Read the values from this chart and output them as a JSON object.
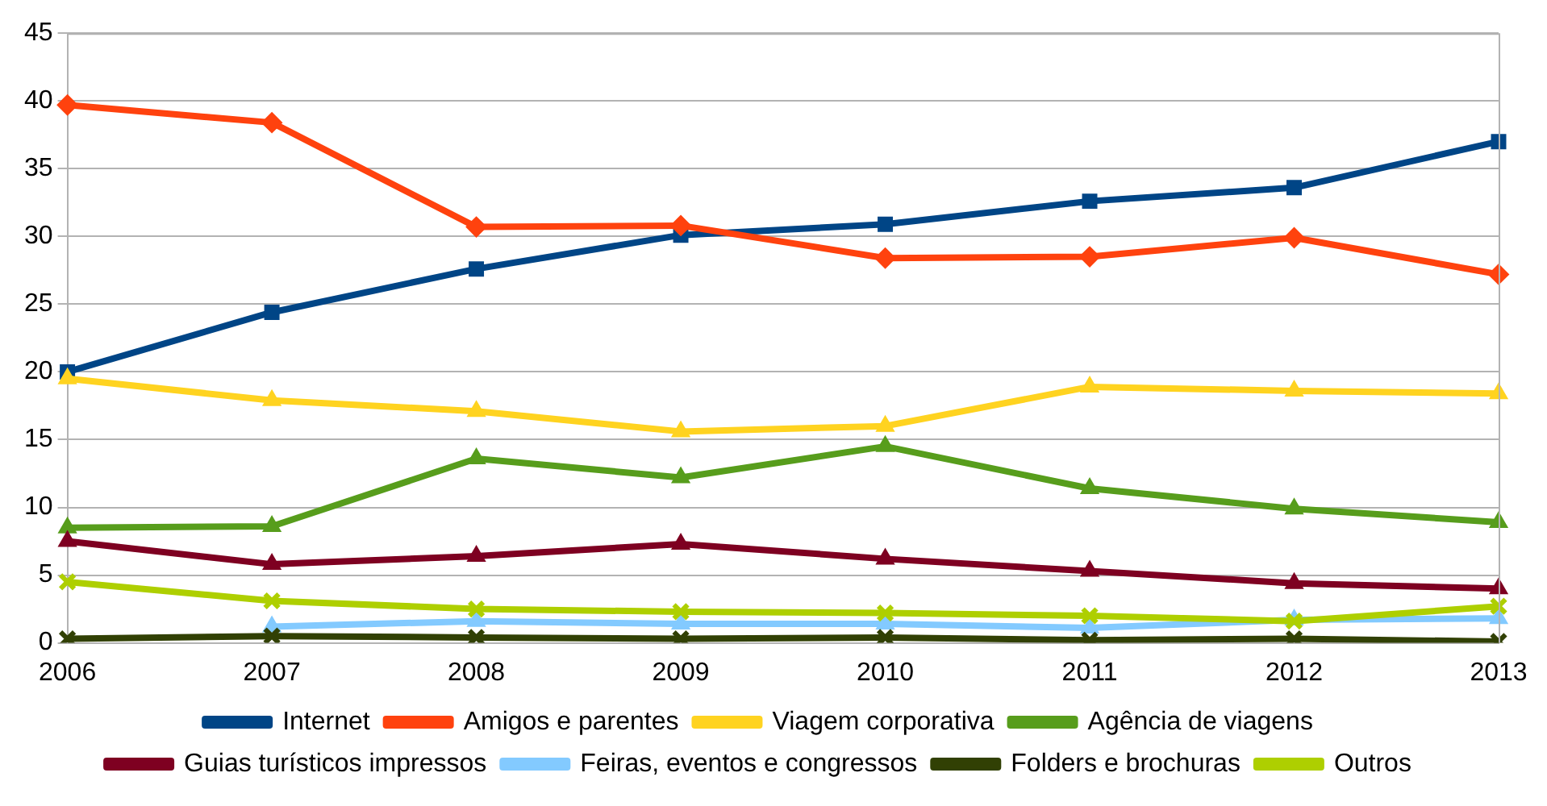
{
  "chart_data": {
    "type": "line",
    "categories": [
      "2006",
      "2007",
      "2008",
      "2009",
      "2010",
      "2011",
      "2012",
      "2013"
    ],
    "ylim": [
      0,
      45
    ],
    "yticks": [
      0,
      5,
      10,
      15,
      20,
      25,
      30,
      35,
      40,
      45
    ],
    "grid": "y",
    "legend": "bottom",
    "line_style": "solid",
    "series": [
      {
        "name": "Internet",
        "color": "#004586",
        "marker": "square",
        "values": [
          20,
          24.4,
          27.6,
          30.1,
          30.9,
          32.6,
          33.6,
          37.0
        ]
      },
      {
        "name": "Amigos e parentes",
        "color": "#ff420e",
        "marker": "diamond",
        "values": [
          39.7,
          38.4,
          30.7,
          30.8,
          28.4,
          28.5,
          29.9,
          27.2
        ]
      },
      {
        "name": "Viagem corporativa",
        "color": "#ffd320",
        "marker": "triangle",
        "values": [
          19.5,
          17.9,
          17.1,
          15.6,
          16.0,
          18.9,
          18.6,
          18.4
        ]
      },
      {
        "name": "Agência de viagens",
        "color": "#579d1c",
        "marker": "triangle",
        "values": [
          8.5,
          8.6,
          13.6,
          12.2,
          14.5,
          11.4,
          9.9,
          8.9
        ]
      },
      {
        "name": "Guias turísticos impressos",
        "color": "#7e0021",
        "marker": "triangle",
        "values": [
          7.5,
          5.8,
          6.4,
          7.3,
          6.2,
          5.3,
          4.4,
          4.0
        ]
      },
      {
        "name": "Feiras, eventos e congressos",
        "color": "#83caff",
        "marker": "triangle",
        "values": [
          null,
          1.2,
          1.6,
          1.4,
          1.4,
          1.1,
          1.7,
          1.8
        ]
      },
      {
        "name": "Folders e brochuras",
        "color": "#314004",
        "marker": "cross",
        "values": [
          0.3,
          0.5,
          0.4,
          0.3,
          0.4,
          0.2,
          0.3,
          0.1
        ]
      },
      {
        "name": "Outros",
        "color": "#aecf00",
        "marker": "cross",
        "values": [
          4.5,
          3.1,
          2.5,
          2.3,
          2.2,
          2.0,
          1.6,
          2.7
        ]
      }
    ]
  }
}
